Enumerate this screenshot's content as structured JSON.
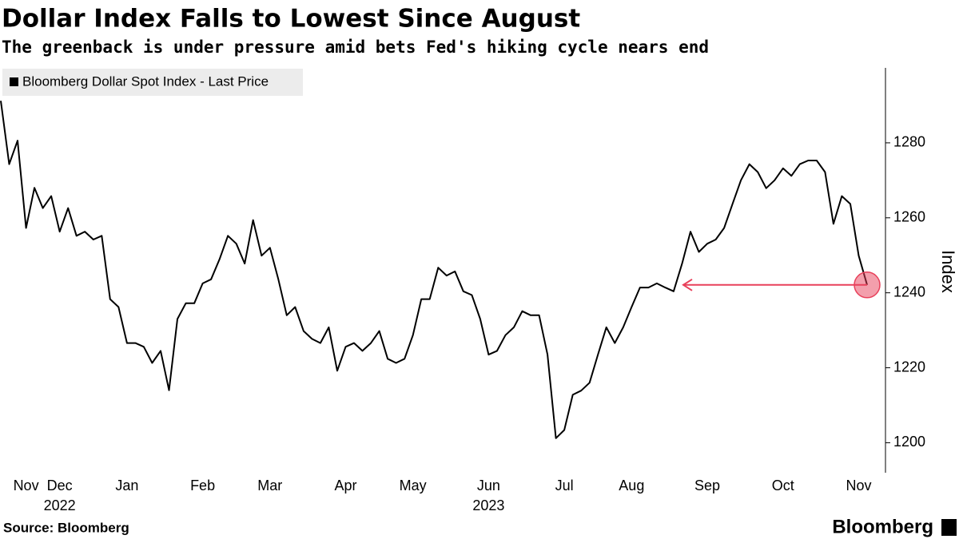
{
  "chart_data": {
    "type": "line",
    "title": "Dollar Index Falls to Lowest Since August",
    "subtitle": "The greenback is under pressure amid bets Fed's hiking cycle nears end",
    "y_axis_label": "Index",
    "source": "Source: Bloomberg",
    "brand": "Bloomberg",
    "categories": [
      null,
      null,
      null,
      "Nov",
      null,
      null,
      null,
      "Dec",
      null,
      null,
      null,
      null,
      null,
      null,
      null,
      "Jan",
      null,
      null,
      null,
      null,
      null,
      null,
      null,
      null,
      "Feb",
      null,
      null,
      null,
      null,
      null,
      null,
      null,
      "Mar",
      null,
      null,
      null,
      null,
      null,
      null,
      null,
      null,
      "Apr",
      null,
      null,
      null,
      null,
      null,
      null,
      null,
      "May",
      null,
      null,
      null,
      null,
      null,
      null,
      null,
      null,
      "Jun",
      null,
      null,
      null,
      null,
      null,
      null,
      null,
      null,
      "Jul",
      null,
      null,
      null,
      null,
      null,
      null,
      null,
      "Aug",
      null,
      null,
      null,
      null,
      null,
      null,
      null,
      null,
      "Sep",
      null,
      null,
      null,
      null,
      null,
      null,
      null,
      null,
      "Oct",
      null,
      null,
      null,
      null,
      null,
      null,
      null,
      null,
      "Nov",
      null
    ],
    "category_years": [
      null,
      null,
      null,
      null,
      null,
      null,
      null,
      "2022",
      null,
      null,
      null,
      null,
      null,
      null,
      null,
      null,
      null,
      null,
      null,
      null,
      null,
      null,
      null,
      null,
      null,
      null,
      null,
      null,
      null,
      null,
      null,
      null,
      null,
      null,
      null,
      null,
      null,
      null,
      null,
      null,
      null,
      null,
      null,
      null,
      null,
      null,
      null,
      null,
      null,
      null,
      null,
      null,
      null,
      null,
      null,
      null,
      null,
      null,
      "2023",
      null,
      null,
      null,
      null,
      null,
      null,
      null,
      null,
      null,
      null,
      null,
      null,
      null,
      null,
      null,
      null,
      null,
      null,
      null,
      null,
      null,
      null,
      null,
      null,
      null,
      null,
      null,
      null,
      null,
      null,
      null,
      null,
      null,
      null,
      null,
      null,
      null,
      null,
      null,
      null,
      null,
      null,
      null,
      null,
      null
    ],
    "series": [
      {
        "name": "Bloomberg Dollar Spot Index - Last Price",
        "color": "#000000",
        "values": [
          1291.2,
          1274.3,
          1280.6,
          1257.3,
          1268,
          1262.6,
          1265.8,
          1256.3,
          1262.6,
          1255.2,
          1256.3,
          1254.2,
          1255.2,
          1238.3,
          1236.2,
          1226.6,
          1226.6,
          1225.6,
          1221.3,
          1224.5,
          1214,
          1233,
          1237.2,
          1237.2,
          1242.5,
          1243.6,
          1248.9,
          1255.2,
          1253.1,
          1247.8,
          1259.4,
          1249.9,
          1252,
          1243.6,
          1234,
          1236.2,
          1229.8,
          1227.7,
          1226.6,
          1230.8,
          1219.2,
          1225.6,
          1226.6,
          1224.5,
          1226.6,
          1229.8,
          1222.4,
          1221.3,
          1222.4,
          1228.7,
          1238.3,
          1238.3,
          1246.7,
          1244.6,
          1245.7,
          1240.4,
          1239.4,
          1233,
          1223.5,
          1224.5,
          1228.7,
          1230.8,
          1235.1,
          1234,
          1234,
          1223.5,
          1201.2,
          1203.4,
          1212.8,
          1213.9,
          1216,
          1223.5,
          1230.8,
          1226.6,
          1230.8,
          1236.2,
          1241.4,
          1241.4,
          1242.5,
          1241.4,
          1240.4,
          1247.8,
          1256.3,
          1250.9,
          1253.1,
          1254.2,
          1257.3,
          1263.7,
          1270,
          1274.3,
          1272.2,
          1267.9,
          1270,
          1273.2,
          1271.2,
          1274.3,
          1275.3,
          1275.3,
          1272.2,
          1258.4,
          1265.8,
          1263.7,
          1249.9,
          1242.1
        ]
      }
    ],
    "ylim": [
      1192,
      1300
    ],
    "yticks": [
      1200,
      1220,
      1240,
      1260,
      1280
    ],
    "annotation_color": "#e8405a"
  }
}
